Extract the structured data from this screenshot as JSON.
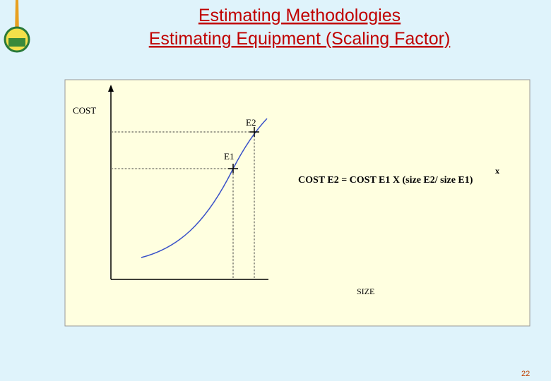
{
  "header": {
    "title_line1": "Estimating Methodologies",
    "title_line2": "Estimating Equipment (Scaling Factor)"
  },
  "diagram": {
    "y_axis_label": "COST",
    "x_axis_label": "SIZE",
    "point_e2": "E2",
    "point_e1": "E1",
    "formula": "COST E2 = COST E1 X (size E2/ size E1)",
    "exponent": "x"
  },
  "footer": {
    "page_number": "22"
  }
}
